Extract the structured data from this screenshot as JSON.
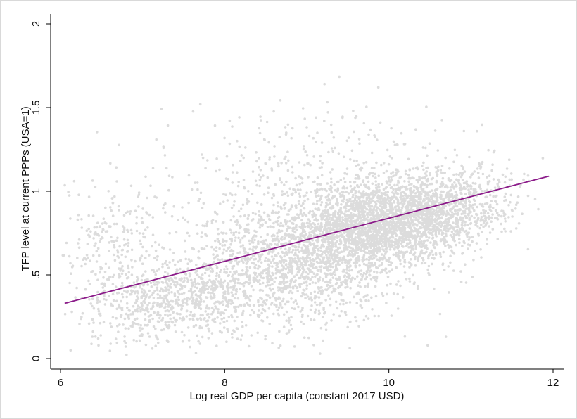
{
  "chart_data": {
    "type": "scatter",
    "xlabel": "Log real GDP per capita (constant 2017 USD)",
    "ylabel": "TFP level at current PPPs (USA=1)",
    "xlim": [
      6,
      12
    ],
    "ylim": [
      0,
      2
    ],
    "x_ticks": [
      6,
      8,
      10,
      12
    ],
    "x_tick_labels": [
      "6",
      "8",
      "10",
      "12"
    ],
    "y_ticks": [
      0,
      0.5,
      1,
      1.5,
      2
    ],
    "y_tick_labels": [
      "0",
      ".5",
      "1",
      "1.5",
      "2"
    ],
    "grid": false,
    "legend": "none",
    "point_count_approx": 6000,
    "point_color": "#dcdcdc",
    "fit_line": {
      "type": "linear",
      "color": "#8b1a89",
      "x": [
        6.05,
        11.95
      ],
      "y": [
        0.33,
        1.09
      ]
    },
    "density_clusters": [
      {
        "x": 9.8,
        "y": 0.8,
        "sx": 0.55,
        "sy": 0.14,
        "weight": 0.34
      },
      {
        "x": 10.6,
        "y": 0.9,
        "sx": 0.45,
        "sy": 0.12,
        "weight": 0.18
      },
      {
        "x": 8.8,
        "y": 0.55,
        "sx": 0.7,
        "sy": 0.18,
        "weight": 0.24
      },
      {
        "x": 7.4,
        "y": 0.35,
        "sx": 0.5,
        "sy": 0.12,
        "weight": 0.12
      },
      {
        "x": 8.9,
        "y": 1.0,
        "sx": 0.9,
        "sy": 0.25,
        "weight": 0.08
      },
      {
        "x": 6.6,
        "y": 0.65,
        "sx": 0.3,
        "sy": 0.2,
        "weight": 0.04
      }
    ]
  }
}
